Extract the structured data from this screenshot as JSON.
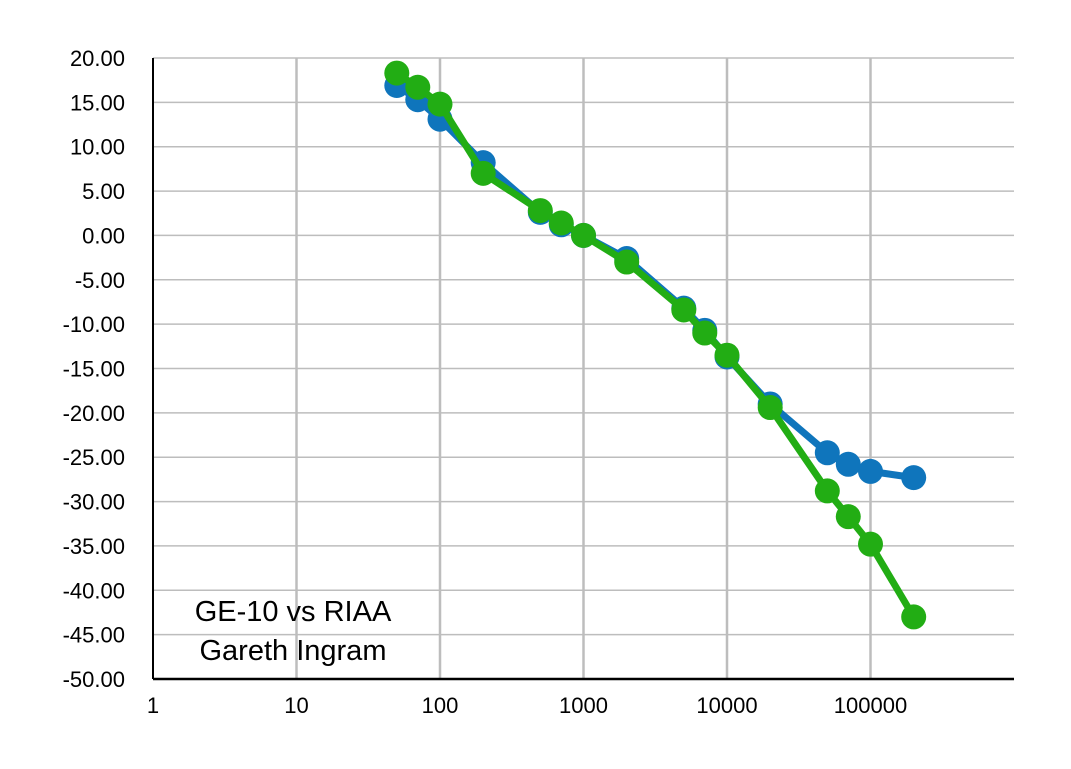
{
  "chart_data": {
    "type": "line",
    "x_scale": "log",
    "xlim": [
      1,
      1000000
    ],
    "ylim": [
      -50,
      20
    ],
    "grid": true,
    "x_tick_labels": [
      "1",
      "10",
      "100",
      "1000",
      "10000",
      "100000"
    ],
    "x_tick_values": [
      1,
      10,
      100,
      1000,
      10000,
      100000
    ],
    "y_tick_labels": [
      "20.00",
      "15.00",
      "10.00",
      "5.00",
      "0.00",
      "-5.00",
      "-10.00",
      "-15.00",
      "-20.00",
      "-25.00",
      "-30.00",
      "-35.00",
      "-40.00",
      "-45.00",
      "-50.00"
    ],
    "y_tick_values": [
      20,
      15,
      10,
      5,
      0,
      -5,
      -10,
      -15,
      -20,
      -25,
      -30,
      -35,
      -40,
      -45,
      -50
    ],
    "annotation": [
      "GE-10 vs RIAA",
      "Gareth Ingram"
    ],
    "series": [
      {
        "color": "#0f75bc",
        "points": [
          {
            "x": 50,
            "y": 16.9
          },
          {
            "x": 70,
            "y": 15.3
          },
          {
            "x": 100,
            "y": 13.1
          },
          {
            "x": 200,
            "y": 8.2
          },
          {
            "x": 500,
            "y": 2.6
          },
          {
            "x": 700,
            "y": 1.2
          },
          {
            "x": 1000,
            "y": 0.0
          },
          {
            "x": 2000,
            "y": -2.6
          },
          {
            "x": 5000,
            "y": -8.2
          },
          {
            "x": 7000,
            "y": -10.7
          },
          {
            "x": 10000,
            "y": -13.7
          },
          {
            "x": 20000,
            "y": -19.0
          },
          {
            "x": 50000,
            "y": -24.5
          },
          {
            "x": 70000,
            "y": -25.8
          },
          {
            "x": 100000,
            "y": -26.6
          },
          {
            "x": 200000,
            "y": -27.3
          }
        ]
      },
      {
        "color": "#22ad14",
        "points": [
          {
            "x": 50,
            "y": 18.3
          },
          {
            "x": 70,
            "y": 16.7
          },
          {
            "x": 100,
            "y": 14.8
          },
          {
            "x": 200,
            "y": 7.0
          },
          {
            "x": 500,
            "y": 2.8
          },
          {
            "x": 700,
            "y": 1.4
          },
          {
            "x": 1000,
            "y": 0.0
          },
          {
            "x": 2000,
            "y": -3.0
          },
          {
            "x": 5000,
            "y": -8.4
          },
          {
            "x": 7000,
            "y": -11.0
          },
          {
            "x": 10000,
            "y": -13.5
          },
          {
            "x": 20000,
            "y": -19.4
          },
          {
            "x": 50000,
            "y": -28.8
          },
          {
            "x": 70000,
            "y": -31.7
          },
          {
            "x": 100000,
            "y": -34.8
          },
          {
            "x": 200000,
            "y": -43.0
          }
        ]
      }
    ]
  }
}
